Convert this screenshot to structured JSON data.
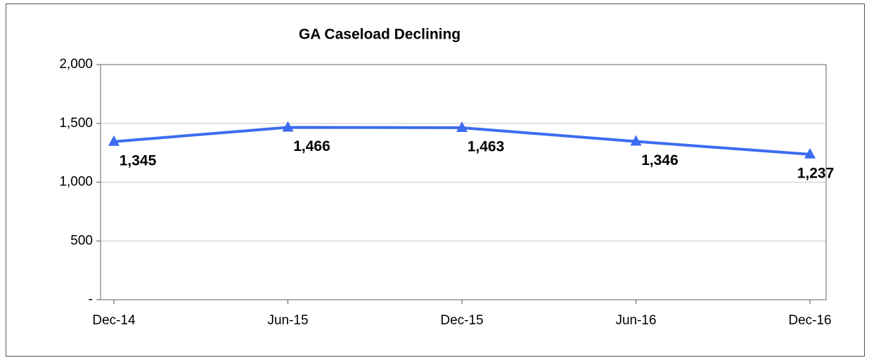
{
  "chart_data": {
    "type": "line",
    "title": "GA Caseload Declining",
    "categories": [
      "Dec-14",
      "Jun-15",
      "Dec-15",
      "Jun-16",
      "Dec-16"
    ],
    "series": [
      {
        "name": "GA Caseload",
        "color": "#3c6cf0",
        "values": [
          1345,
          1466,
          1463,
          1346,
          1237
        ],
        "value_labels": [
          "1,345",
          "1,466",
          "1,463",
          "1,346",
          "1,237"
        ]
      }
    ],
    "ylim": [
      0,
      2000
    ],
    "yticks": [
      {
        "value": 0,
        "label": "-"
      },
      500,
      {
        "value": 1000,
        "label": "1,000"
      },
      {
        "value": 1500,
        "label": "1,500"
      },
      {
        "value": 2000,
        "label": "2,000"
      }
    ],
    "grid": true
  }
}
